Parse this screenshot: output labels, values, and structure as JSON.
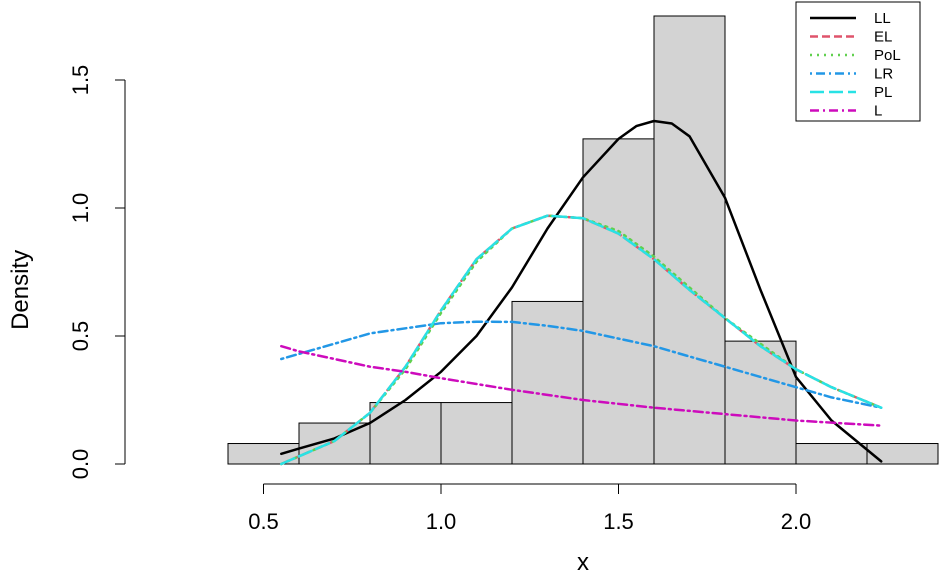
{
  "chart_data": {
    "type": "histogram",
    "xlabel": "x",
    "ylabel": "Density",
    "xlim": [
      0.4,
      2.4
    ],
    "ylim": [
      0,
      1.75
    ],
    "x_ticks": [
      "0.5",
      "1.0",
      "1.5",
      "2.0"
    ],
    "y_ticks": [
      "0.0",
      "0.5",
      "1.0",
      "1.5"
    ],
    "bins": [
      {
        "from": 0.4,
        "to": 0.6,
        "density": 0.08
      },
      {
        "from": 0.6,
        "to": 0.8,
        "density": 0.16
      },
      {
        "from": 0.8,
        "to": 1.0,
        "density": 0.24
      },
      {
        "from": 1.0,
        "to": 1.2,
        "density": 0.24
      },
      {
        "from": 1.2,
        "to": 1.4,
        "density": 0.635
      },
      {
        "from": 1.4,
        "to": 1.6,
        "density": 1.27
      },
      {
        "from": 1.6,
        "to": 1.8,
        "density": 1.75
      },
      {
        "from": 1.8,
        "to": 2.0,
        "density": 0.48
      },
      {
        "from": 2.0,
        "to": 2.2,
        "density": 0.08
      },
      {
        "from": 2.2,
        "to": 2.4,
        "density": 0.08
      }
    ],
    "series": [
      {
        "name": "LL",
        "color": "#000000",
        "dash": "",
        "x": [
          0.55,
          0.6,
          0.7,
          0.8,
          0.9,
          1.0,
          1.1,
          1.2,
          1.3,
          1.4,
          1.5,
          1.55,
          1.6,
          1.65,
          1.7,
          1.8,
          1.9,
          2.0,
          2.1,
          2.24
        ],
        "y": [
          0.04,
          0.06,
          0.1,
          0.16,
          0.25,
          0.36,
          0.5,
          0.69,
          0.92,
          1.12,
          1.27,
          1.32,
          1.34,
          1.33,
          1.28,
          1.04,
          0.68,
          0.34,
          0.17,
          0.01
        ]
      },
      {
        "name": "EL",
        "color": "#DF536B",
        "dash": "8,4",
        "x": [
          0.55,
          0.6,
          0.7,
          0.8,
          0.9,
          1.0,
          1.1,
          1.2,
          1.3,
          1.4,
          1.5,
          1.6,
          1.7,
          1.8,
          1.9,
          2.0,
          2.1,
          2.24
        ],
        "y": [
          0.0,
          0.03,
          0.09,
          0.2,
          0.38,
          0.6,
          0.8,
          0.92,
          0.97,
          0.96,
          0.9,
          0.8,
          0.68,
          0.57,
          0.46,
          0.37,
          0.3,
          0.22
        ]
      },
      {
        "name": "PoL",
        "color": "#61D04F",
        "dash": "2,5",
        "x": [
          0.55,
          0.6,
          0.7,
          0.8,
          0.9,
          1.0,
          1.1,
          1.2,
          1.3,
          1.4,
          1.5,
          1.6,
          1.7,
          1.8,
          1.9,
          2.0,
          2.1,
          2.24
        ],
        "y": [
          0.0,
          0.03,
          0.09,
          0.2,
          0.37,
          0.59,
          0.79,
          0.92,
          0.97,
          0.96,
          0.91,
          0.81,
          0.69,
          0.57,
          0.47,
          0.37,
          0.3,
          0.22
        ]
      },
      {
        "name": "LR",
        "color": "#2297E6",
        "dash": "2,4,9,4",
        "x": [
          0.55,
          0.6,
          0.7,
          0.8,
          0.9,
          1.0,
          1.1,
          1.2,
          1.3,
          1.4,
          1.5,
          1.6,
          1.7,
          1.8,
          1.9,
          2.0,
          2.1,
          2.24
        ],
        "y": [
          0.41,
          0.43,
          0.47,
          0.51,
          0.53,
          0.55,
          0.556,
          0.555,
          0.54,
          0.52,
          0.49,
          0.46,
          0.42,
          0.38,
          0.34,
          0.3,
          0.26,
          0.22
        ]
      },
      {
        "name": "PL",
        "color": "#28E2E5",
        "dash": "14,5",
        "x": [
          0.55,
          0.6,
          0.7,
          0.8,
          0.9,
          1.0,
          1.1,
          1.2,
          1.3,
          1.4,
          1.5,
          1.6,
          1.7,
          1.8,
          1.9,
          2.0,
          2.1,
          2.24
        ],
        "y": [
          0.0,
          0.03,
          0.09,
          0.2,
          0.38,
          0.6,
          0.8,
          0.92,
          0.97,
          0.96,
          0.9,
          0.8,
          0.68,
          0.57,
          0.46,
          0.37,
          0.3,
          0.22
        ]
      },
      {
        "name": "L",
        "color": "#CD0BBC",
        "dash": "9,4,2,4",
        "x": [
          0.55,
          0.6,
          0.7,
          0.8,
          0.9,
          1.0,
          1.2,
          1.4,
          1.6,
          1.8,
          2.0,
          2.24
        ],
        "y": [
          0.46,
          0.44,
          0.41,
          0.38,
          0.36,
          0.335,
          0.29,
          0.25,
          0.22,
          0.195,
          0.17,
          0.15
        ]
      }
    ],
    "legend": {
      "position": "top-right",
      "entries": [
        "LL",
        "EL",
        "PoL",
        "LR",
        "PL",
        "L"
      ]
    }
  }
}
